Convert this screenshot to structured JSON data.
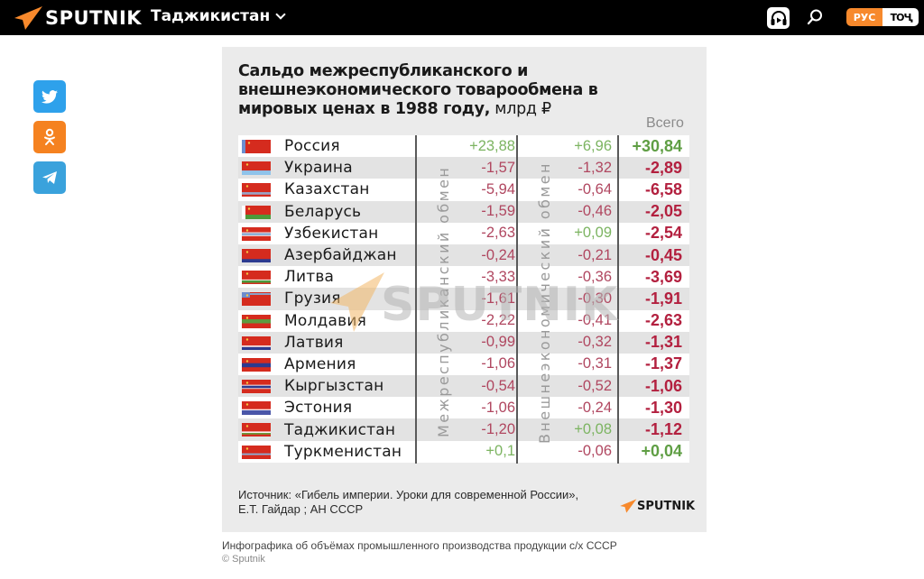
{
  "header": {
    "brand": "SPUTNIK",
    "region": "Таджикистан",
    "lang_active": "РУС",
    "lang_other": "ТОҶ",
    "icons": {
      "audio": "headphones-play-icon",
      "search": "search-icon",
      "dropdown": "chevron-down-icon"
    }
  },
  "share": [
    {
      "name": "twitter",
      "color": "#2ea1eb"
    },
    {
      "name": "odnoklassniki",
      "color": "#f58220"
    },
    {
      "name": "telegram",
      "color": "#3aa2dc"
    }
  ],
  "infographic": {
    "title": "Сальдо межреспубликанского и внешнеэкономического товарообмена в мировых ценах в 1988 году,",
    "unit": " млрд ₽",
    "total_header": "Всего",
    "col1_label": "Межреспубликанский обмен",
    "col2_label": "Внешнеэкономический обмен",
    "watermark": "SPUTNIK",
    "source": "Источник: «Гибель империи. Уроки для современной России»,",
    "source2": "Е.Т. Гайдар ; АН СССР",
    "logo": "SPUTNIK"
  },
  "rows": [
    {
      "country": "Россия",
      "inter": "+23,88",
      "foreign": "+6,96",
      "total": "+30,84"
    },
    {
      "country": "Украина",
      "inter": "-1,57",
      "foreign": "-1,32",
      "total": "-2,89"
    },
    {
      "country": "Казахстан",
      "inter": "-5,94",
      "foreign": "-0,64",
      "total": "-6,58"
    },
    {
      "country": "Беларусь",
      "inter": "-1,59",
      "foreign": "-0,46",
      "total": "-2,05"
    },
    {
      "country": "Узбекистан",
      "inter": "-2,63",
      "foreign": "+0,09",
      "total": "-2,54"
    },
    {
      "country": "Азербайджан",
      "inter": "-0,24",
      "foreign": "-0,21",
      "total": "-0,45"
    },
    {
      "country": "Литва",
      "inter": "-3,33",
      "foreign": "-0,36",
      "total": "-3,69"
    },
    {
      "country": "Грузия",
      "inter": "-1,61",
      "foreign": "-0,30",
      "total": "-1,91"
    },
    {
      "country": "Молдавия",
      "inter": "-2,22",
      "foreign": "-0,41",
      "total": "-2,63"
    },
    {
      "country": "Латвия",
      "inter": "-0,99",
      "foreign": "-0,32",
      "total": "-1,31"
    },
    {
      "country": "Армения",
      "inter": "-1,06",
      "foreign": "-0,31",
      "total": "-1,37"
    },
    {
      "country": "Кыргызстан",
      "inter": "-0,54",
      "foreign": "-0,52",
      "total": "-1,06"
    },
    {
      "country": "Эстония",
      "inter": "-1,06",
      "foreign": "-0,24",
      "total": "-1,30"
    },
    {
      "country": "Таджикистан",
      "inter": "-1,20",
      "foreign": "+0,08",
      "total": "-1,12"
    },
    {
      "country": "Туркменистан",
      "inter": "+0,1",
      "foreign": "-0,06",
      "total": "+0,04"
    }
  ],
  "flags": [
    {
      "main": "#d52b1e",
      "bands": [],
      "hoist": "#6c8fd0"
    },
    {
      "main": "#d52b1e",
      "bands": [
        [
          "#8fc3ea",
          0.33
        ]
      ]
    },
    {
      "main": "#d52b1e",
      "bands": [
        [
          "#9aa3c4",
          0.18
        ],
        [
          "#d52b1e",
          0.15
        ]
      ]
    },
    {
      "main": "#d52b1e",
      "bands": [
        [
          "#4c9a3a",
          0.33
        ]
      ],
      "hoist": "#ffffff"
    },
    {
      "main": "#d52b1e",
      "bands": [
        [
          "#ffffff",
          0.05
        ],
        [
          "#8bb0d8",
          0.18
        ],
        [
          "#ffffff",
          0.05
        ],
        [
          "#d52b1e",
          0.35
        ]
      ]
    },
    {
      "main": "#d52b1e",
      "bands": [
        [
          "#2c3a8f",
          0.25
        ]
      ]
    },
    {
      "main": "#d52b1e",
      "bands": [
        [
          "#ffffff",
          0.06
        ],
        [
          "#4a9a3c",
          0.18
        ],
        [
          "#d52b1e",
          0.1
        ]
      ]
    },
    {
      "main": "#d52b1e",
      "bands": [],
      "topband": "#8aa3c8",
      "canton": "#6d8ccc"
    },
    {
      "main": "#d52b1e",
      "bands": [
        [
          "#d52b1e",
          0.33
        ]
      ],
      "midband": "#5e9a3f"
    },
    {
      "main": "#d52b1e",
      "bands": [
        [
          "#ffffff",
          0.1
        ],
        [
          "#2c3a8f",
          0.22
        ]
      ]
    },
    {
      "main": "#d52b1e",
      "bands": [
        [
          "#2c3a8f",
          0.3
        ],
        [
          "#d52b1e",
          0.32
        ]
      ]
    },
    {
      "main": "#d52b1e",
      "bands": [
        [
          "#ffffff",
          0.06
        ],
        [
          "#2c3a8f",
          0.18
        ],
        [
          "#ffffff",
          0.06
        ],
        [
          "#d52b1e",
          0.32
        ]
      ]
    },
    {
      "main": "#d52b1e",
      "bands": [
        [
          "#ffffff",
          0.08
        ],
        [
          "#4a56a8",
          0.34
        ]
      ]
    },
    {
      "main": "#d52b1e",
      "bands": [
        [
          "#ffffff",
          0.1
        ],
        [
          "#6a9a3a",
          0.12
        ],
        [
          "#d52b1e",
          0.15
        ]
      ]
    },
    {
      "main": "#d52b1e",
      "bands": [
        [
          "#8bb0d8",
          0.12
        ],
        [
          "#d52b1e",
          0.3
        ]
      ],
      "topgap": 0.22
    }
  ],
  "footer": {
    "caption": "Инфографика об объёмах промышленного производства продукции с/х СССР",
    "credit": "© Sputnik"
  },
  "colors": {
    "accent": "#f7892c",
    "positive": "#5f9e44",
    "negative": "#b3203f",
    "card_bg": "#ebebeb"
  }
}
